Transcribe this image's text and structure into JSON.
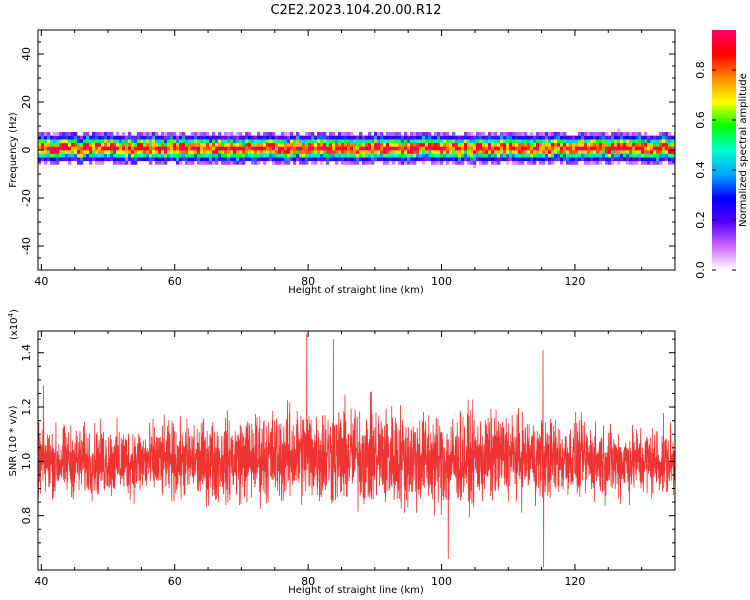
{
  "figure": {
    "title": "C2E2.2023.104.20.00.R12"
  },
  "chart_data": [
    {
      "type": "heatmap",
      "xlabel": "Height of straight line (km)",
      "ylabel": "Frequency (Hz)",
      "xlim": [
        39.5,
        135
      ],
      "ylim": [
        -50,
        50
      ],
      "xticks": [
        40,
        60,
        80,
        100,
        120
      ],
      "yticks": [
        40,
        20,
        0,
        -20,
        -40
      ],
      "band_center_hz": 0,
      "band_halfwidth_hz": 6,
      "colorbar": {
        "label": "Normalized spectral amplitude",
        "range": [
          0.0,
          0.96
        ],
        "ticks": [
          0.0,
          0.2,
          0.4,
          0.6,
          0.8
        ],
        "colormap": [
          "#ffffff",
          "#cc66ff",
          "#5500ff",
          "#0000ff",
          "#00aaff",
          "#00ffcc",
          "#00ff00",
          "#ffff00",
          "#ff8800",
          "#ff0000",
          "#ff0066"
        ]
      }
    },
    {
      "type": "line",
      "xlabel": "Height of straight line (km)",
      "ylabel": "SNR (10 * v/v)",
      "y_multiplier": "(x10",
      "y_multiplier_exp": "4",
      "y_multiplier_close": ")",
      "xlim": [
        39.5,
        135
      ],
      "ylim": [
        0.6,
        1.48
      ],
      "xticks": [
        40,
        60,
        80,
        100,
        120
      ],
      "yticks": [
        "0.8",
        "1.0",
        "1.2",
        "1.4"
      ],
      "color": "#ee3333",
      "series": [
        {
          "x": [
            40,
            45,
            50,
            55,
            60,
            65,
            70,
            75,
            80,
            85,
            90,
            95,
            100,
            105,
            110,
            115,
            120,
            125,
            130,
            135
          ],
          "values": [
            1.0,
            1.0,
            1.0,
            1.0,
            1.0,
            1.0,
            1.01,
            1.02,
            1.03,
            1.02,
            1.02,
            1.01,
            1.0,
            1.01,
            1.02,
            1.01,
            1.01,
            1.0,
            1.0,
            1.0
          ]
        }
      ],
      "notable_peaks": [
        {
          "x": 40.3,
          "y": 1.28
        },
        {
          "x": 79.8,
          "y": 1.47
        },
        {
          "x": 83.8,
          "y": 1.45
        },
        {
          "x": 115.2,
          "y": 1.41
        },
        {
          "x": 101.0,
          "y": 0.64
        },
        {
          "x": 115.3,
          "y": 0.61
        }
      ]
    }
  ]
}
